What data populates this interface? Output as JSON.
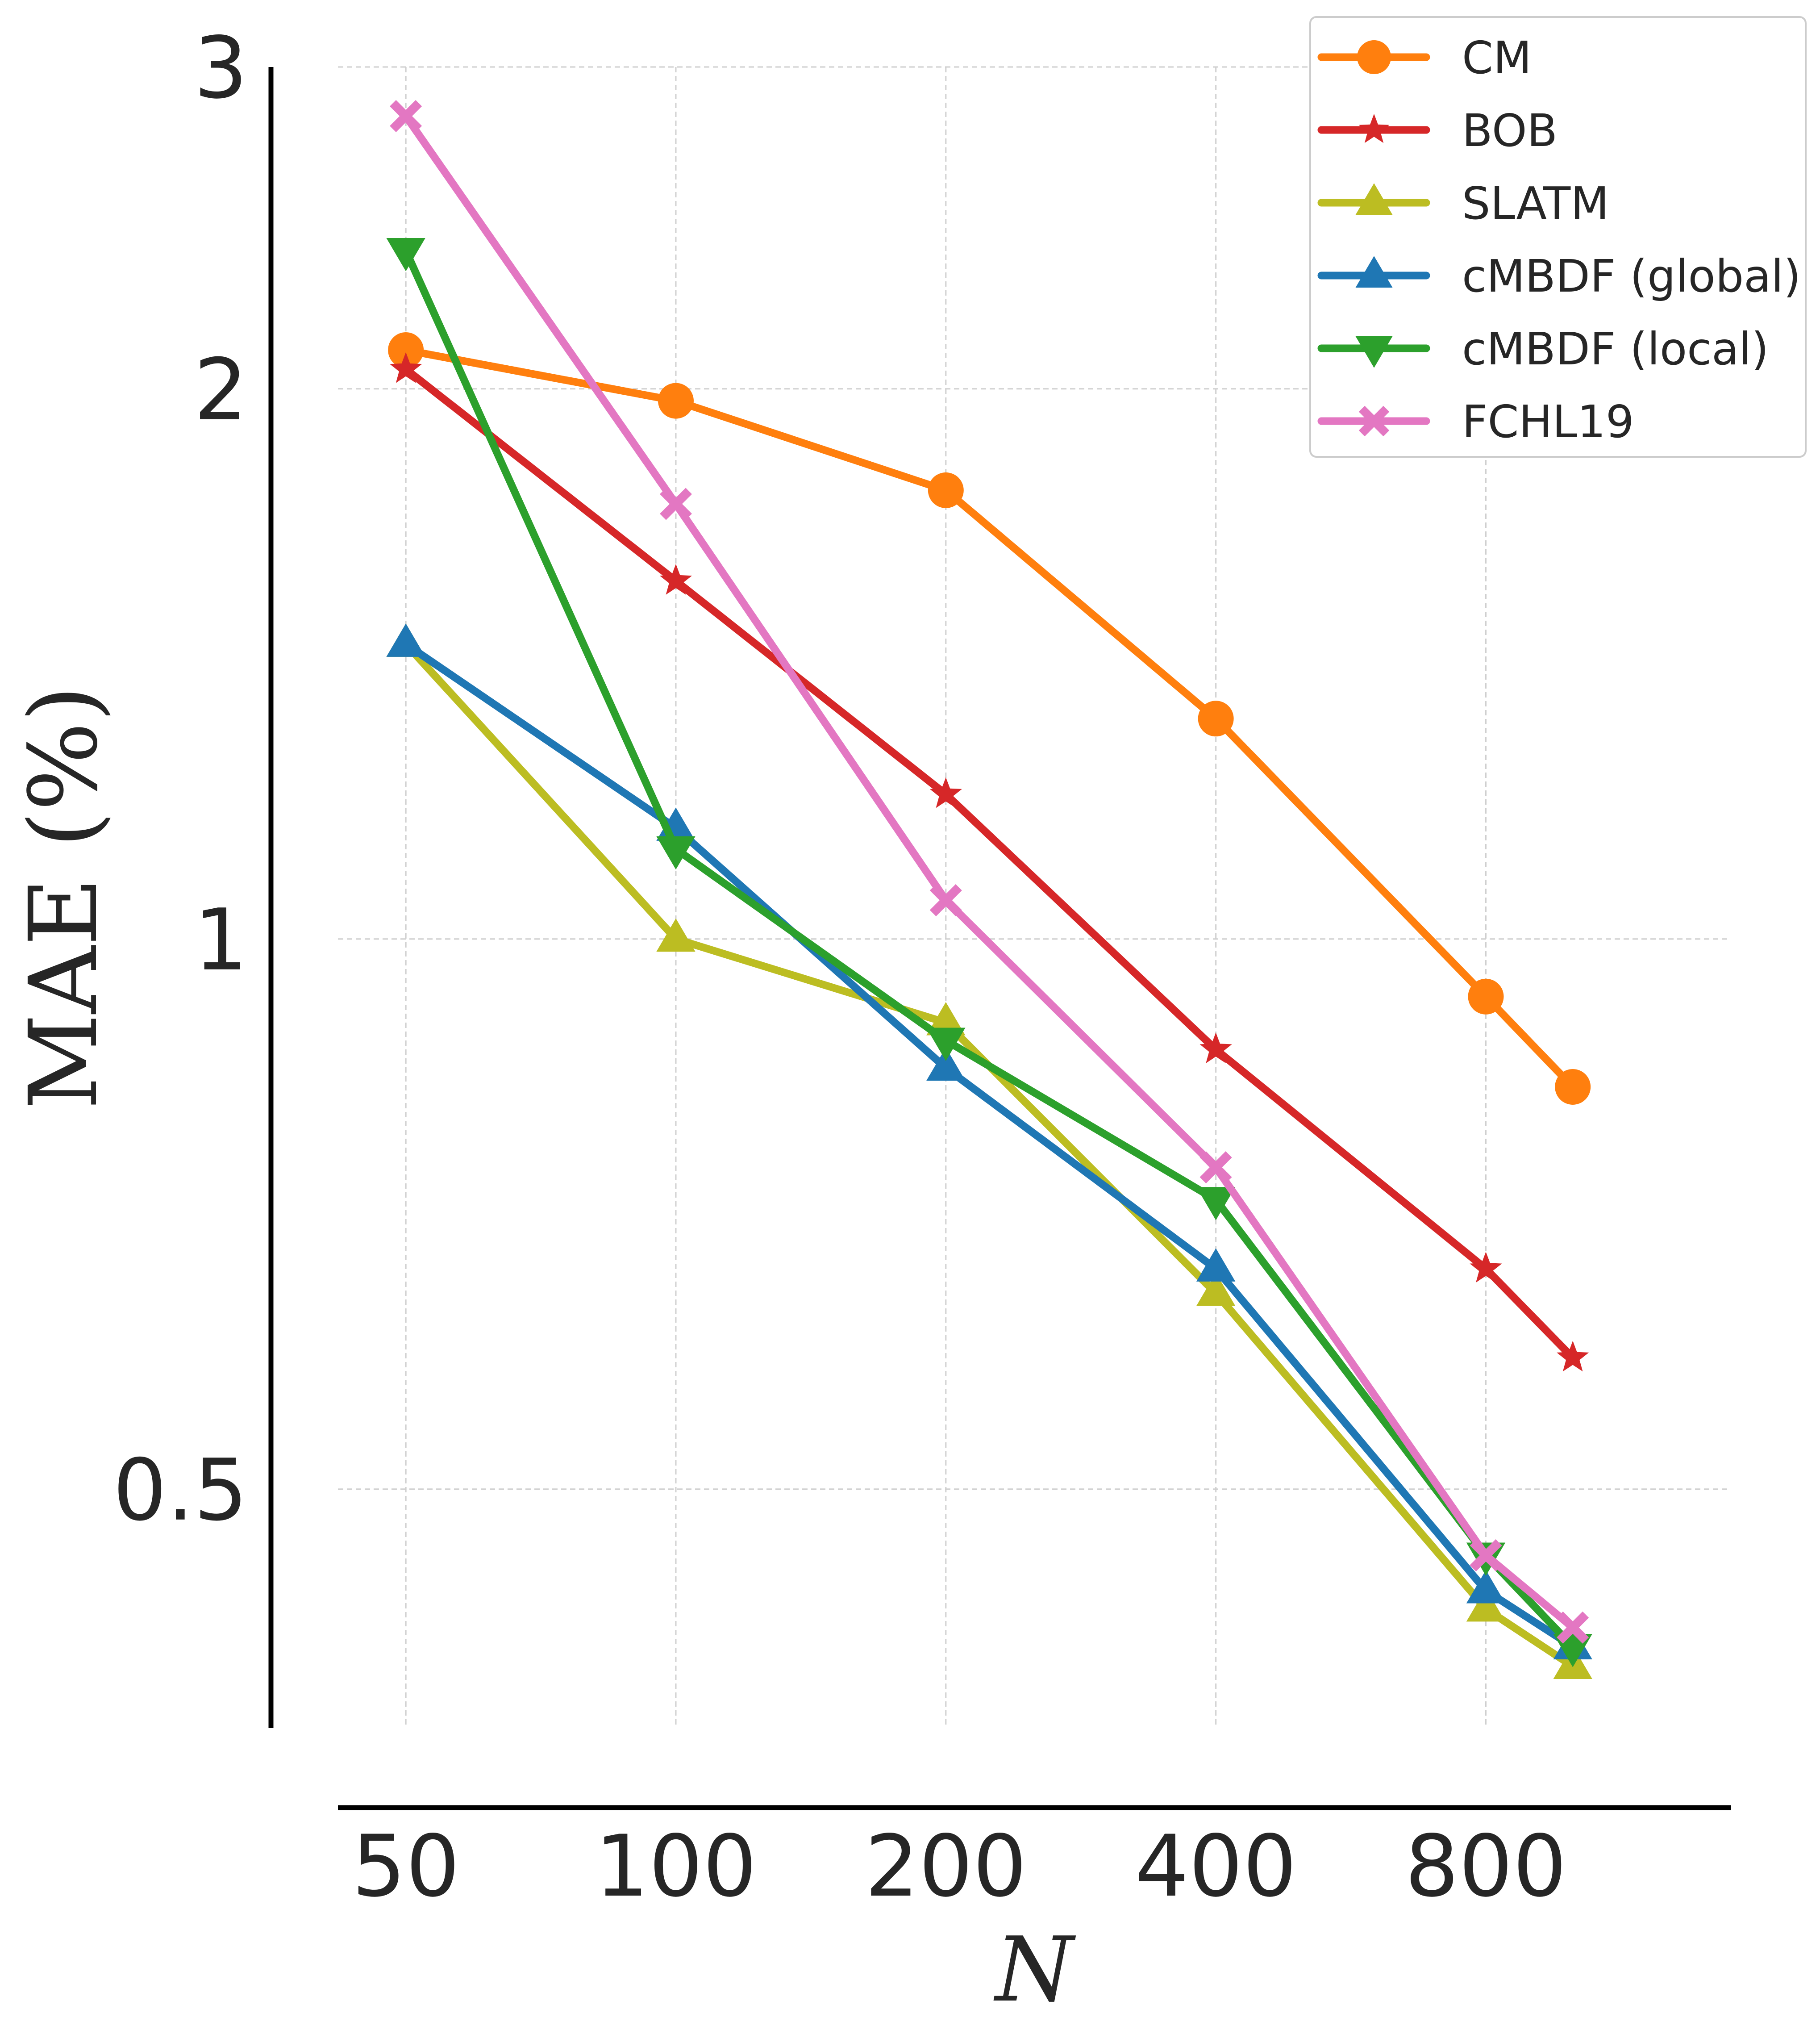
{
  "chart_data": {
    "type": "line",
    "title": "",
    "xlabel": "N",
    "ylabel": "MAE (%)",
    "xscale": "log",
    "yscale": "log",
    "x_ticks": [
      50,
      100,
      200,
      400,
      800
    ],
    "x_tick_labels": [
      "50",
      "100",
      "200",
      "400",
      "800"
    ],
    "y_ticks": [
      0.5,
      1,
      2,
      3
    ],
    "y_tick_labels": [
      "0.5",
      "1",
      "2",
      "3"
    ],
    "xlim": [
      42,
      1500
    ],
    "ylim": [
      0.37,
      3.0
    ],
    "grid": true,
    "legend_position": "top-right",
    "x": [
      50,
      100,
      200,
      400,
      800,
      1000
    ],
    "series": [
      {
        "name": "CM",
        "color": "#ff7f0e",
        "marker": "circle",
        "values": [
          2.1,
          1.97,
          1.76,
          1.32,
          0.93,
          0.83
        ]
      },
      {
        "name": "BOB",
        "color": "#d62728",
        "marker": "star",
        "values": [
          2.05,
          1.57,
          1.2,
          0.87,
          0.66,
          0.59
        ]
      },
      {
        "name": "SLATM",
        "color": "#bcbd22",
        "marker": "triangle-up",
        "values": [
          1.45,
          1.0,
          0.9,
          0.64,
          0.43,
          0.4
        ]
      },
      {
        "name": "cMBDF (global)",
        "color": "#1f77b4",
        "marker": "triangle-up",
        "values": [
          1.45,
          1.15,
          0.85,
          0.66,
          0.44,
          0.41
        ]
      },
      {
        "name": "cMBDF (local)",
        "color": "#2ca02c",
        "marker": "triangle-down",
        "values": [
          2.38,
          1.12,
          0.88,
          0.72,
          0.46,
          0.41
        ]
      },
      {
        "name": "FCHL19",
        "color": "#e377c2",
        "marker": "x-thick",
        "values": [
          2.82,
          1.73,
          1.05,
          0.75,
          0.46,
          0.42
        ]
      }
    ]
  }
}
